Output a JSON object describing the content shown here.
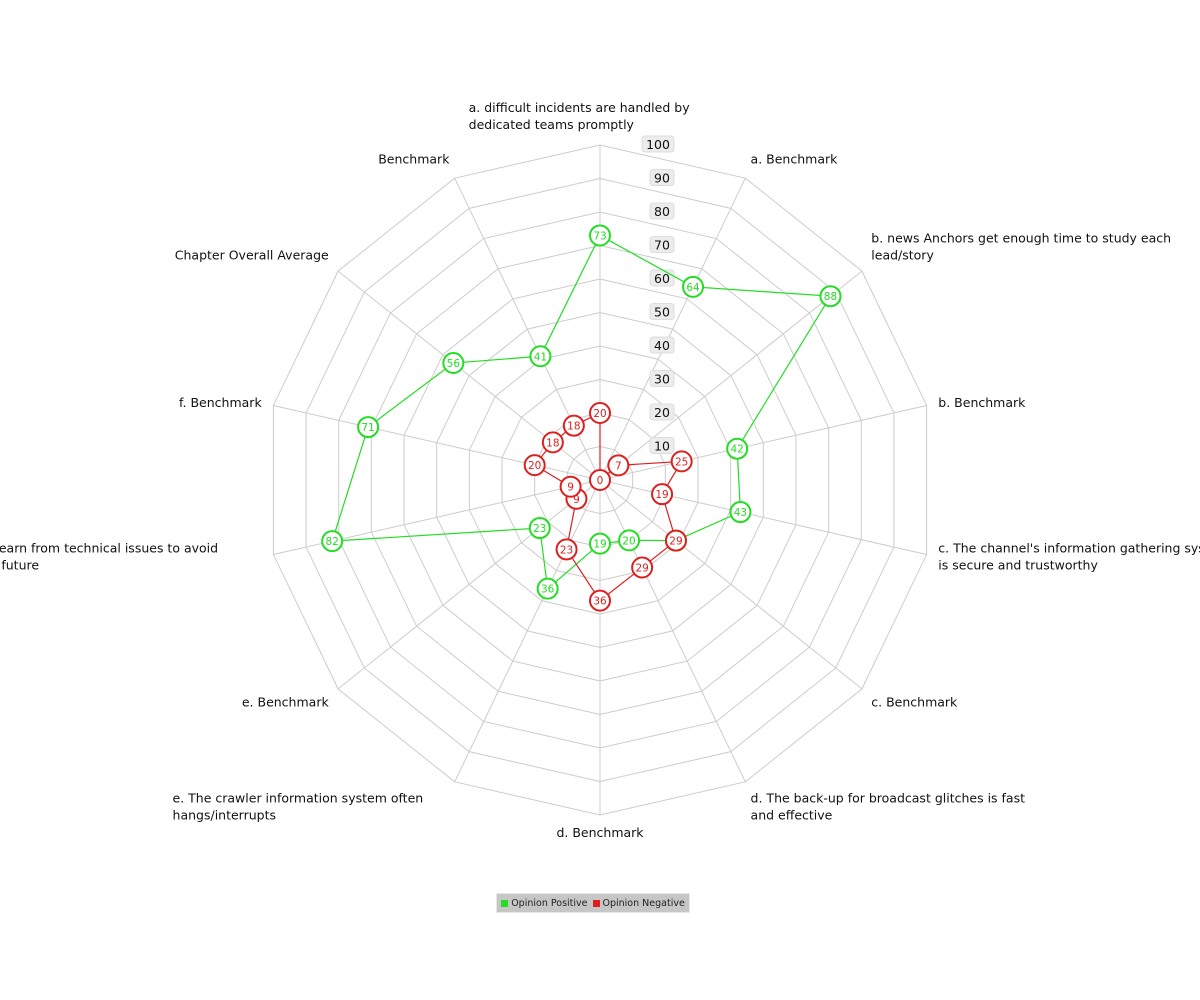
{
  "chart_data": {
    "type": "radar",
    "rmax": 100,
    "ticks": [
      "10",
      "20",
      "30",
      "40",
      "50",
      "60",
      "70",
      "80",
      "90",
      "100"
    ],
    "axes": [
      "a. difficult incidents are handled by dedicated teams promptly",
      "a. Benchmark",
      "b. news Anchors get enough time to study each lead/story",
      "b. Benchmark",
      "c. The channel's information gathering system is secure and trustworthy",
      "c. Benchmark",
      "d. The back-up for broadcast glitches is fast and effective",
      "d. Benchmark",
      "e. The crawler information system often hangs/interrupts",
      "e. Benchmark",
      "f. They learn from technical issues to avoid them in future",
      "f. Benchmark",
      "Chapter Overall Average",
      "Benchmark"
    ],
    "series": [
      {
        "name": "Opinion Positive",
        "color": "#22dd22",
        "values": [
          73,
          64,
          88,
          42,
          43,
          29,
          20,
          19,
          36,
          23,
          82,
          71,
          56,
          41
        ]
      },
      {
        "name": "Opinion Negative",
        "color": "#dd1f1f",
        "values": [
          20,
          0,
          7,
          25,
          19,
          29,
          29,
          36,
          23,
          9,
          9,
          20,
          18,
          18
        ]
      }
    ],
    "legend_position": "bottom",
    "grid": true
  }
}
